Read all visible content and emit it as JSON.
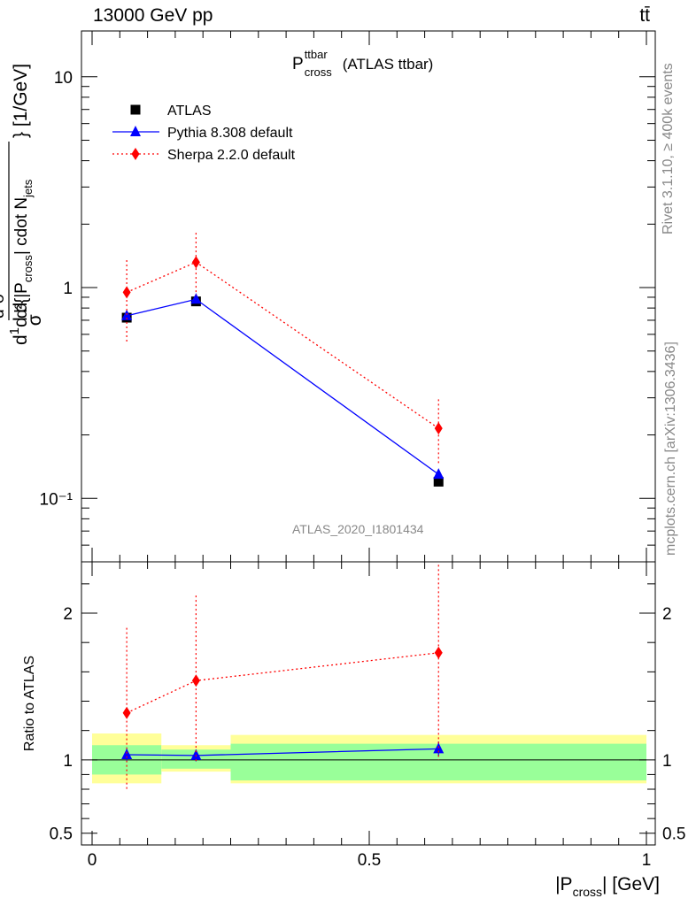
{
  "header": {
    "left": "13000 GeV pp",
    "right": "tt̄"
  },
  "plot_title": {
    "main": "P",
    "sup": "ttbar",
    "sub": "cross",
    "suffix": "(ATLAS ttbar)"
  },
  "side_text": {
    "rivet": "Rivet 3.1.10, ≥ 400k events",
    "mcplots": "mcplots.cern.ch [arXiv:1306.3436]"
  },
  "analysis_label": "ATLAS_2020_I1801434",
  "colors": {
    "atlas": "#000000",
    "pythia": "#0000ff",
    "sherpa": "#ff0000",
    "band_inner": "#99ff99",
    "band_outer": "#ffff99"
  },
  "chart_data": [
    {
      "type": "scatter",
      "panel": "main",
      "yscale": "log",
      "ylabel": "d¹/σ d²σ/ d²{|P_cross| cdot N_jets} [1/GeV]",
      "ytick_labels": [
        "10⁻¹",
        "1",
        "10"
      ],
      "xlim": [
        0,
        1
      ],
      "ylim": [
        0.05,
        16.5
      ],
      "legend_position": "top-left",
      "series": [
        {
          "name": "ATLAS",
          "marker": "square",
          "x": [
            0.0625,
            0.1875,
            0.625
          ],
          "y": [
            0.72,
            0.86,
            0.12
          ],
          "xerr": [
            0,
            0,
            0
          ],
          "yerr_lo": [
            0.03,
            0.03,
            0.005
          ],
          "yerr_hi": [
            0.03,
            0.03,
            0.005
          ]
        },
        {
          "name": "Pythia 8.308 default",
          "marker": "triangle",
          "line": "solid",
          "x": [
            0.0625,
            0.1875,
            0.625
          ],
          "y": [
            0.735,
            0.88,
            0.13
          ],
          "yerr_lo": [
            0.03,
            0.03,
            0.006
          ],
          "yerr_hi": [
            0.03,
            0.03,
            0.006
          ]
        },
        {
          "name": "Sherpa 2.2.0 default",
          "marker": "diamond",
          "line": "dotted",
          "x": [
            0.0625,
            0.1875,
            0.625
          ],
          "y": [
            0.95,
            1.32,
            0.215
          ],
          "yerr_lo": [
            0.4,
            0.4,
            0.07
          ],
          "yerr_hi": [
            0.4,
            0.5,
            0.08
          ]
        }
      ]
    },
    {
      "type": "scatter",
      "panel": "ratio",
      "ylabel": "Ratio to ATLAS",
      "xlabel": "|P_cross| [GeV]",
      "xticks": [
        0,
        0.5,
        1
      ],
      "xtick_labels": [
        "0",
        "0.5",
        "1"
      ],
      "yticks": [
        0.5,
        1,
        2
      ],
      "ytick_labels": [
        "0.5",
        "1",
        "2"
      ],
      "xlim": [
        -0.02,
        1.02
      ],
      "ylim": [
        0.42,
        2.35
      ],
      "bands": [
        {
          "x0": 0,
          "x1": 0.125,
          "inner": [
            0.9,
            1.1
          ],
          "outer": [
            0.84,
            1.18
          ]
        },
        {
          "x0": 0.125,
          "x1": 0.25,
          "inner": [
            0.94,
            1.07
          ],
          "outer": [
            0.92,
            1.1
          ]
        },
        {
          "x0": 0.25,
          "x1": 1.0,
          "inner": [
            0.86,
            1.11
          ],
          "outer": [
            0.84,
            1.17
          ]
        }
      ],
      "series": [
        {
          "name": "Pythia 8.308 default",
          "x": [
            0.0625,
            0.1875,
            0.625
          ],
          "y": [
            1.035,
            1.03,
            1.075
          ],
          "yerr_lo": [
            0.04,
            0.04,
            0.05
          ],
          "yerr_hi": [
            0.04,
            0.04,
            0.05
          ]
        },
        {
          "name": "Sherpa 2.2.0 default",
          "x": [
            0.0625,
            0.1875,
            0.625
          ],
          "y": [
            1.32,
            1.54,
            1.73
          ],
          "yerr_lo": [
            0.53,
            0.55,
            0.73
          ],
          "yerr_hi": [
            0.58,
            0.58,
            0.63
          ]
        }
      ]
    }
  ]
}
